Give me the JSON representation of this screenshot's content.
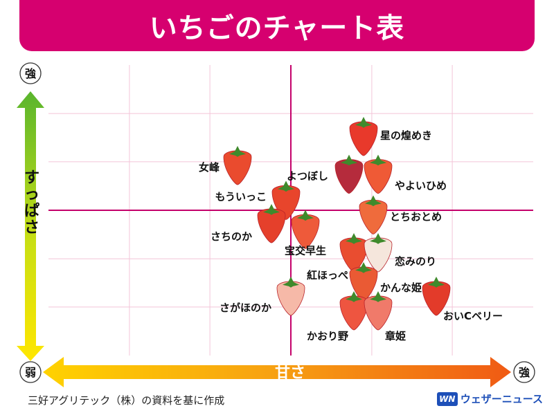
{
  "header": {
    "title": "いちごのチャート表"
  },
  "chart_data": {
    "type": "scatter",
    "x_axis_label": "甘さ",
    "y_axis_label": "すっぱさ",
    "x_low_label": "弱",
    "x_high_label": "強",
    "y_high_label": "強",
    "grid": true,
    "xlim": [
      0,
      10
    ],
    "ylim": [
      0,
      10
    ],
    "points": [
      {
        "name": "星の煌めき",
        "x": 6.5,
        "y": 7.5,
        "color": "#e8392b"
      },
      {
        "name": "女峰",
        "x": 3.9,
        "y": 6.5,
        "color": "#ea4b2e"
      },
      {
        "name": "よつぼし",
        "x": 6.2,
        "y": 6.2,
        "color": "#b52b3c"
      },
      {
        "name": "やよいひめ",
        "x": 6.8,
        "y": 6.2,
        "color": "#ef5a36"
      },
      {
        "name": "もういっこ",
        "x": 4.9,
        "y": 5.3,
        "color": "#e8452c"
      },
      {
        "name": "とちおとめ",
        "x": 6.7,
        "y": 4.8,
        "color": "#ef6b3c"
      },
      {
        "name": "さちのか",
        "x": 4.6,
        "y": 4.5,
        "color": "#e5402b"
      },
      {
        "name": "宝交早生",
        "x": 5.3,
        "y": 4.3,
        "color": "#ee5a3a"
      },
      {
        "name": "紅ほっぺ",
        "x": 6.3,
        "y": 3.5,
        "color": "#e94d30"
      },
      {
        "name": "恋みのり",
        "x": 6.8,
        "y": 3.5,
        "color": "#f5e6dc"
      },
      {
        "name": "かんな姫",
        "x": 6.5,
        "y": 2.5,
        "color": "#ea5a34"
      },
      {
        "name": "おいCベリー",
        "x": 8.0,
        "y": 2.0,
        "color": "#e33b2a"
      },
      {
        "name": "さがほのか",
        "x": 5.0,
        "y": 2.0,
        "color": "#f6b9a8"
      },
      {
        "name": "かおり野",
        "x": 6.3,
        "y": 1.5,
        "color": "#ee5540"
      },
      {
        "name": "章姫",
        "x": 6.8,
        "y": 1.5,
        "color": "#f07a6a"
      }
    ]
  },
  "footer": {
    "source": "三好アグリテック（株）の資料を基に作成"
  },
  "brand": {
    "logo": "WN",
    "name": "ウェザーニュース"
  },
  "colors": {
    "title_bg": "#d6006f",
    "grid": "#f3c4d8",
    "center_axis": "#c4006a"
  }
}
